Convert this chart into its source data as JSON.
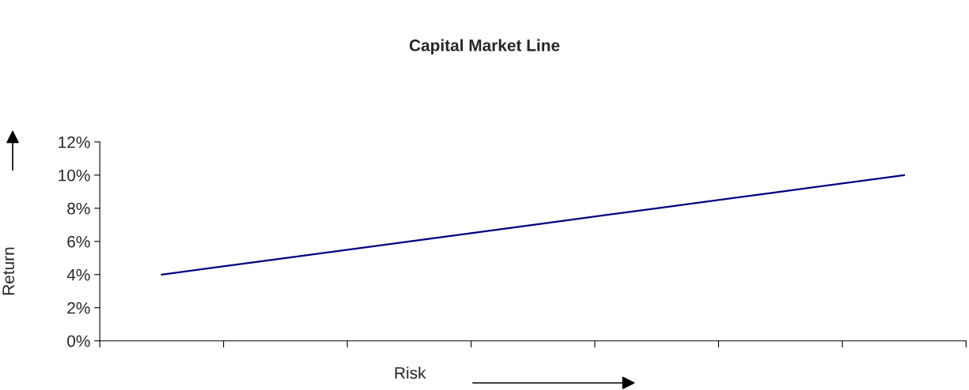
{
  "chart_data": {
    "type": "line",
    "title": "Capital Market Line",
    "xlabel": "Risk",
    "ylabel": "Return",
    "categories": [
      null,
      null,
      null,
      null,
      null,
      null,
      null
    ],
    "series": [
      {
        "color": "#000080",
        "values": [
          4,
          5,
          6,
          7,
          8,
          9,
          10
        ]
      }
    ],
    "ylim": [
      0,
      12
    ],
    "yticks": [
      {
        "value": 0,
        "label": "0%"
      },
      {
        "value": 2,
        "label": "2%"
      },
      {
        "value": 4,
        "label": "4%"
      },
      {
        "value": 6,
        "label": "6%"
      },
      {
        "value": 8,
        "label": "8%"
      },
      {
        "value": 10,
        "label": "10%"
      },
      {
        "value": 12,
        "label": "12%"
      }
    ],
    "tick_labels": "y",
    "grid": false,
    "marker": "none",
    "line_style": "solid"
  }
}
